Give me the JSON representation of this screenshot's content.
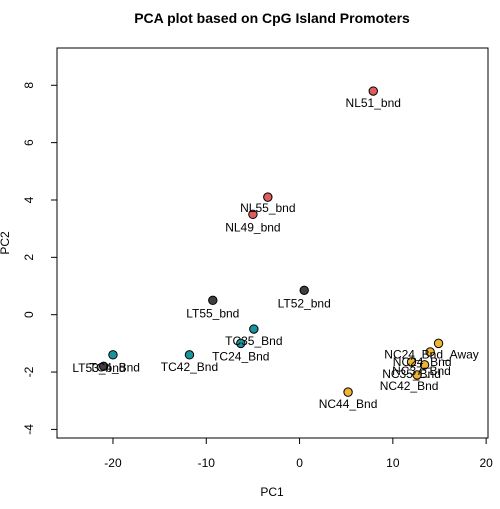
{
  "chart_data": {
    "type": "scatter",
    "title": "PCA plot based on CpG Island Promoters",
    "xlabel": "PC1",
    "ylabel": "PC2",
    "xlim": [
      -26,
      20.2
    ],
    "ylim": [
      -4.3,
      9.3
    ],
    "xticks": [
      "-20",
      "-10",
      "0",
      "10",
      "20"
    ],
    "yticks": [
      "-4",
      "-2",
      "0",
      "2",
      "4",
      "6",
      "8"
    ],
    "grid": false,
    "legend": "none",
    "colors": {
      "NL": "#e05d5d",
      "LT": "#3f3f3f",
      "TC": "#17959b",
      "NC": "#f0b433"
    },
    "points": [
      {
        "label": "NL51_bnd",
        "group": "NL",
        "x": 7.9,
        "y": 7.8
      },
      {
        "label": "NL55_bnd",
        "group": "NL",
        "x": -3.4,
        "y": 4.1
      },
      {
        "label": "NL49_bnd",
        "group": "NL",
        "x": -5.0,
        "y": 3.5
      },
      {
        "label": "LT52_bnd",
        "group": "LT",
        "x": 0.5,
        "y": 0.85
      },
      {
        "label": "LT55_bnd",
        "group": "LT",
        "x": -9.3,
        "y": 0.5
      },
      {
        "label": "TC4_Bnd",
        "group": "LT",
        "x": -21.0,
        "y": -1.8
      },
      {
        "label": "LT53_bnd",
        "group": "TC",
        "x": -20.0,
        "y": -1.4
      },
      {
        "label": "TC42_Bnd",
        "group": "TC",
        "x": -11.8,
        "y": -1.4
      },
      {
        "label": "TC35_Bnd",
        "group": "TC",
        "x": -4.9,
        "y": -0.5
      },
      {
        "label": "TC24_Bnd",
        "group": "TC",
        "x": -6.3,
        "y": -1.0
      },
      {
        "label": "NC24_Bnd_Away",
        "group": "NC",
        "x": 14.9,
        "y": -1.0
      },
      {
        "label": "NC24_Bnd",
        "group": "NC",
        "x": 14.0,
        "y": -1.3
      },
      {
        "label": "NC35_Bnd",
        "group": "NC",
        "x": 13.4,
        "y": -1.75
      },
      {
        "label": "NC37_Bnd",
        "group": "NC",
        "x": 12.0,
        "y": -1.65
      },
      {
        "label": "NC42_Bnd",
        "group": "NC",
        "x": 12.6,
        "y": -2.1
      },
      {
        "label": "NC44_Bnd",
        "group": "NC",
        "x": 5.2,
        "y": -2.7
      }
    ]
  }
}
